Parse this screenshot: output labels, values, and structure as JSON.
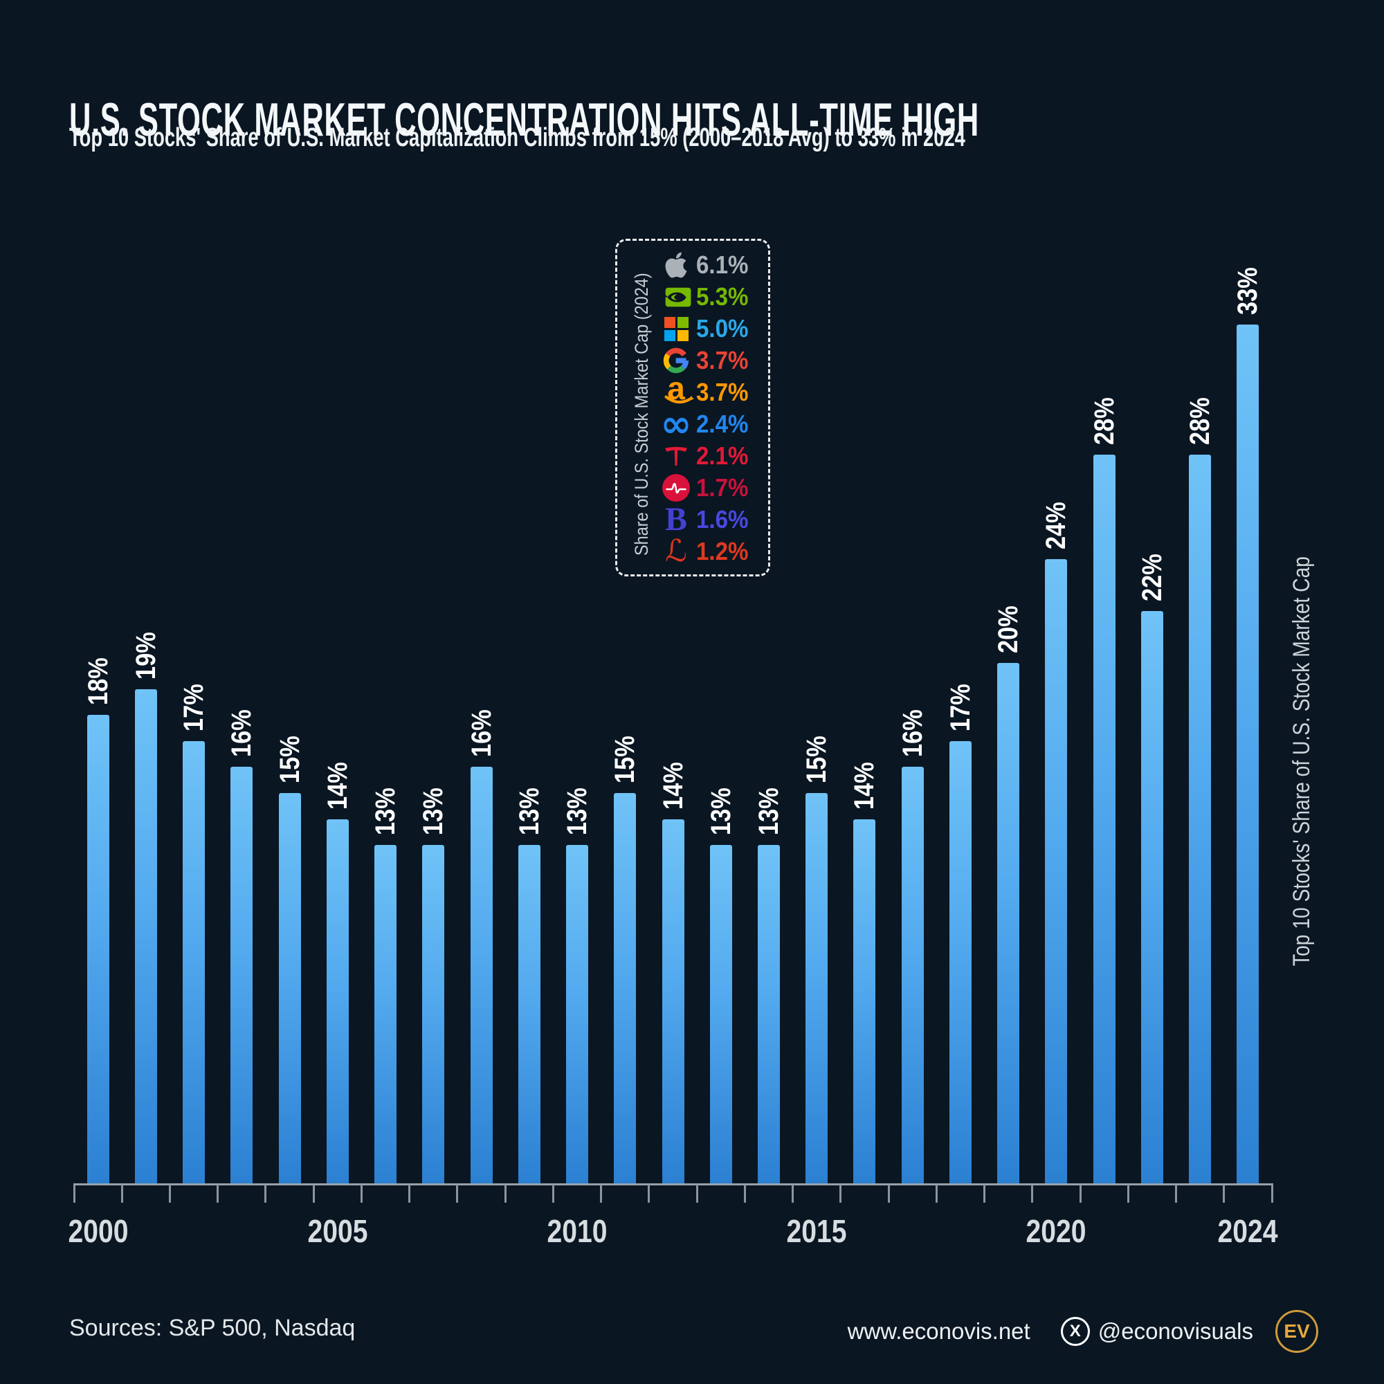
{
  "header": {
    "title": "U.S. STOCK MARKET CONCENTRATION HITS ALL-TIME HIGH",
    "subtitle": "Top 10 Stocks' Share of U.S. Market Capitalization Climbs from 15% (2000–2018 Avg) to 33% in 2024"
  },
  "chart_data": {
    "type": "bar",
    "x": [
      2000,
      2001,
      2002,
      2003,
      2004,
      2005,
      2006,
      2007,
      2008,
      2009,
      2010,
      2011,
      2012,
      2013,
      2014,
      2015,
      2016,
      2017,
      2018,
      2019,
      2020,
      2021,
      2022,
      2023,
      2024
    ],
    "values": [
      18,
      19,
      17,
      16,
      15,
      14,
      13,
      13,
      16,
      13,
      13,
      15,
      14,
      13,
      13,
      15,
      14,
      16,
      17,
      20,
      24,
      28,
      22,
      28,
      33
    ],
    "bar_labels": [
      "18%",
      "19%",
      "17%",
      "16%",
      "15%",
      "14%",
      "13%",
      "13%",
      "16%",
      "13%",
      "13%",
      "15%",
      "14%",
      "13%",
      "13%",
      "15%",
      "14%",
      "16%",
      "17%",
      "20%",
      "24%",
      "28%",
      "22%",
      "28%",
      "33%"
    ],
    "xticks": [
      {
        "i": 0,
        "label": "2000"
      },
      {
        "i": 5,
        "label": "2005"
      },
      {
        "i": 10,
        "label": "2010"
      },
      {
        "i": 15,
        "label": "2015"
      },
      {
        "i": 20,
        "label": "2020"
      },
      {
        "i": 24,
        "label": "2024"
      }
    ],
    "right_axis_label": "Top 10 Stocks' Share of U.S. Stock Market Cap",
    "ylim": [
      0,
      35
    ],
    "grid": false,
    "bar_color_top": "#70c3f7",
    "bar_color_bottom": "#2b80d2"
  },
  "legend": {
    "title": "Share of U.S. Stock Market Cap (2024)",
    "items": [
      {
        "icon": "apple-logo",
        "value": "6.1%",
        "color": "#aab2b8"
      },
      {
        "icon": "nvidia-logo",
        "value": "5.3%",
        "color": "#76b900"
      },
      {
        "icon": "microsoft-logo",
        "value": "5.0%",
        "color": "#29a8ea"
      },
      {
        "icon": "google-logo",
        "value": "3.7%",
        "color": "#ea4335"
      },
      {
        "icon": "amazon-logo",
        "value": "3.7%",
        "color": "#ff9900"
      },
      {
        "icon": "meta-logo",
        "value": "2.4%",
        "color": "#2286f0"
      },
      {
        "icon": "tesla-logo",
        "value": "2.1%",
        "color": "#e31937"
      },
      {
        "icon": "broadcom-logo",
        "value": "1.7%",
        "color": "#c9113c"
      },
      {
        "icon": "berkshire-logo",
        "value": "1.6%",
        "color": "#4a48e0"
      },
      {
        "icon": "lilly-logo",
        "value": "1.2%",
        "color": "#e0391f"
      }
    ]
  },
  "footer": {
    "sources": "Sources: S&P 500, Nasdaq",
    "website": "www.econovis.net",
    "x_label": "X",
    "social_handle": "@econovisuals",
    "logo_text": "EV"
  }
}
